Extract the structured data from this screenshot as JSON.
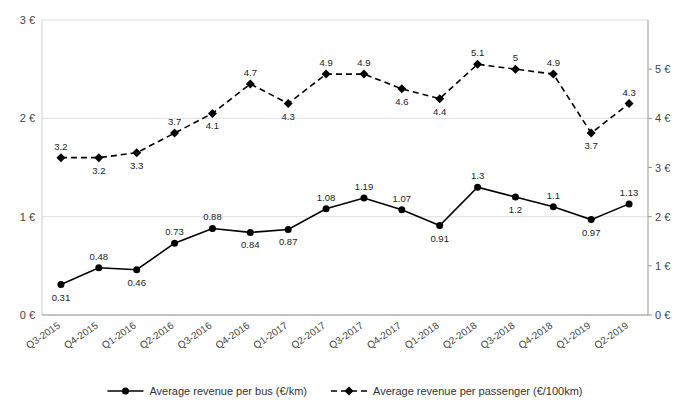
{
  "chart_data": {
    "type": "line",
    "categories": [
      "Q3-2015",
      "Q4-2015",
      "Q1-2016",
      "Q2-2016",
      "Q3-2016",
      "Q4-2016",
      "Q1-2017",
      "Q2-2017",
      "Q3-2017",
      "Q4-2017",
      "Q1-2018",
      "Q2-2018",
      "Q3-2018",
      "Q4-2018",
      "Q1-2019",
      "Q2-2019"
    ],
    "series": [
      {
        "name": "Average revenue per bus (€/km)",
        "color": "#000000",
        "marker": "circle",
        "line_style": "solid",
        "values": [
          0.31,
          0.48,
          0.46,
          0.73,
          0.88,
          0.84,
          0.87,
          1.08,
          1.19,
          1.07,
          0.91,
          1.3,
          1.2,
          1.1,
          0.97,
          1.13
        ]
      },
      {
        "name": "Average revenue per passenger (€/100km)",
        "color": "#000000",
        "marker": "diamond",
        "line_style": "dashed",
        "axis": "y2",
        "values": [
          3.2,
          3.2,
          3.3,
          3.7,
          4.1,
          4.7,
          4.3,
          4.9,
          4.9,
          4.6,
          4.4,
          5.1,
          5.0,
          4.9,
          3.7,
          4.3
        ]
      }
    ],
    "ylim": [
      0,
      3.0
    ],
    "yticks": [
      {
        "value": 0,
        "label": "0 €"
      },
      {
        "value": 1,
        "label": "1 €"
      },
      {
        "value": 2,
        "label": "2 €"
      },
      {
        "value": 3,
        "label": "3 €"
      }
    ],
    "y2lim": [
      0,
      6.0
    ],
    "y2ticks": [
      {
        "value": 0,
        "label": "0 €"
      },
      {
        "value": 1,
        "label": "1 €"
      },
      {
        "value": 2,
        "label": "2 €"
      },
      {
        "value": 3,
        "label": "3 €"
      },
      {
        "value": 4,
        "label": "4 €"
      },
      {
        "value": 5,
        "label": "5 €"
      }
    ],
    "grid": true,
    "legend": "bottom",
    "data_labels": true
  }
}
